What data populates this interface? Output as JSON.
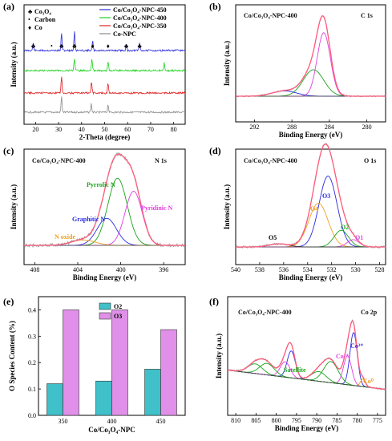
{
  "panels": {
    "a": {
      "label": "(a)",
      "xlabel": "2-Theta (degree)",
      "ylabel": "Intensity (a.u.)",
      "marker_legend": [
        {
          "symbol": "♣",
          "label": "Co₃O₄"
        },
        {
          "symbol": "•",
          "label": "Carbon"
        },
        {
          "symbol": "♦",
          "label": "Co"
        }
      ]
    },
    "b": {
      "label": "(b)",
      "sample": "Co/Co₃O₄-NPC-400",
      "region": "C 1s",
      "xlabel": "Binding Energy (eV)",
      "ylabel": "Intensity (a.u.)"
    },
    "c": {
      "label": "(c)",
      "sample": "Co/Co₃O₄-NPC-400",
      "region": "N 1s",
      "xlabel": "Binding Energy (eV)",
      "ylabel": "Intensity (a.u.)",
      "annotations": [
        "Pyrrolic N",
        "Pyridinic N",
        "Graphitic N",
        "N oxide"
      ]
    },
    "d": {
      "label": "(d)",
      "sample": "Co/Co₃O₄-NPC-400",
      "region": "O 1s",
      "xlabel": "Binding Energy (eV)",
      "ylabel": "Intensity (a.u.)",
      "annotations": [
        "O3",
        "O4",
        "O2",
        "O1",
        "O5"
      ]
    },
    "e": {
      "label": "(e)",
      "xlabel": "Co/Co₃O₄-NPC",
      "ylabel": "O Species Content (%)"
    },
    "f": {
      "label": "(f)",
      "sample": "Co/Co₃O₄-NPC-400",
      "region": "Co 2p",
      "xlabel": "Binding Energy (eV)",
      "ylabel": "Intensity (a.u.)",
      "annotations": [
        "Co³⁺",
        "Co²⁺",
        "Co⁰",
        "Satellite"
      ]
    }
  },
  "colors": {
    "npc450": "#2b2bd9",
    "npc400": "#1fd11f",
    "npc350": "#e02020",
    "conpc": "#8a8a8a",
    "raw": "#999999",
    "fit": "#ff5a7a",
    "green": "#1aa31a",
    "blue": "#2a2ae0",
    "magenta": "#e040e0",
    "orange": "#f0a020",
    "black": "#333333",
    "o2bar": "#40c0c8",
    "o3bar": "#e090e8"
  },
  "chart_data": [
    {
      "panel": "a",
      "type": "line",
      "xlabel": "2-Theta (degree)",
      "ylabel": "Intensity (a.u.)",
      "xlim": [
        15,
        85
      ],
      "xticks": [
        10,
        20,
        30,
        40,
        50,
        60,
        70,
        80
      ],
      "series": [
        {
          "name": "Co/Co₃O₄-NPC-450",
          "peaks": [
            19.0,
            31.3,
            36.9,
            44.8,
            59.4,
            65.2
          ]
        },
        {
          "name": "Co/Co₃O₄-NPC-400",
          "peaks": [
            36.9,
            44.5,
            51.5,
            75.9
          ]
        },
        {
          "name": "Co/Co₃O₄-NPC-350",
          "peaks": [
            31.3,
            44.3,
            51.5
          ]
        },
        {
          "name": "Co-NPC",
          "peaks": [
            31.3,
            44.2,
            51.5
          ]
        }
      ]
    },
    {
      "panel": "b",
      "type": "line",
      "region": "C 1s",
      "xlabel": "Binding Energy (eV)",
      "ylabel": "Intensity (a.u.)",
      "xlim": [
        294,
        278
      ],
      "xticks": [
        292,
        288,
        284,
        280
      ],
      "components": [
        {
          "center": 284.6,
          "height": 0.72,
          "width": 0.7
        },
        {
          "center": 285.7,
          "height": 0.3,
          "width": 1.1
        },
        {
          "center": 288.8,
          "height": 0.06,
          "width": 1.3
        }
      ]
    },
    {
      "panel": "c",
      "type": "line",
      "region": "N 1s",
      "xlabel": "Binding Energy (eV)",
      "ylabel": "Intensity (a.u.)",
      "xlim": [
        409,
        394
      ],
      "xticks": [
        408,
        404,
        400,
        396
      ],
      "components": [
        {
          "name": "Pyrrolic N",
          "center": 400.3,
          "height": 0.62,
          "width": 0.9
        },
        {
          "name": "Pyridinic N",
          "center": 398.8,
          "height": 0.5,
          "width": 0.8
        },
        {
          "name": "Graphitic N",
          "center": 401.3,
          "height": 0.25,
          "width": 0.9
        },
        {
          "name": "N oxide",
          "center": 403.5,
          "height": 0.05,
          "width": 1.1
        }
      ]
    },
    {
      "panel": "d",
      "type": "line",
      "region": "O 1s",
      "xlabel": "Binding Energy (eV)",
      "ylabel": "Intensity (a.u.)",
      "xlim": [
        540,
        527.5
      ],
      "xticks": [
        540,
        538,
        536,
        534,
        532,
        530,
        528
      ],
      "components": [
        {
          "name": "O3",
          "center": 532.3,
          "height": 0.68,
          "width": 0.75
        },
        {
          "name": "O4",
          "center": 533.1,
          "height": 0.42,
          "width": 0.8
        },
        {
          "name": "O2",
          "center": 531.2,
          "height": 0.16,
          "width": 0.6
        },
        {
          "name": "O1",
          "center": 530.2,
          "height": 0.07,
          "width": 0.5
        },
        {
          "name": "O5",
          "center": 536.4,
          "height": 0.03,
          "width": 0.8
        }
      ]
    },
    {
      "panel": "e",
      "type": "bar",
      "xlabel": "Co/Co₃O₄-NPC",
      "ylabel": "O Species Content (%)",
      "categories": [
        "350",
        "400",
        "450"
      ],
      "ylim": [
        0,
        0.45
      ],
      "yticks": [
        0.0,
        0.1,
        0.2,
        0.3,
        0.4
      ],
      "legend": "top-left",
      "series": [
        {
          "name": "O2",
          "values": [
            0.12,
            0.13,
            0.175
          ]
        },
        {
          "name": "O3",
          "values": [
            0.4,
            0.4,
            0.325
          ]
        }
      ]
    },
    {
      "panel": "f",
      "type": "line",
      "region": "Co 2p",
      "xlabel": "Binding Energy (eV)",
      "ylabel": "Intensity (a.u.)",
      "xlim": [
        812,
        773
      ],
      "xticks": [
        810,
        805,
        800,
        795,
        790,
        785,
        780,
        775
      ],
      "components": [
        {
          "name": "Co³⁺",
          "center": 780.9,
          "height": 0.55,
          "width": 0.9
        },
        {
          "name": "Co²⁺",
          "center": 782.4,
          "height": 0.3,
          "width": 1.0
        },
        {
          "name": "Co⁰",
          "center": 778.6,
          "height": 0.08,
          "width": 0.6
        },
        {
          "name": "Satellite",
          "center": 786.5,
          "height": 0.22,
          "width": 1.8
        },
        {
          "center": 789.5,
          "height": 0.1,
          "width": 1.8
        },
        {
          "center": 796.3,
          "height": 0.28,
          "width": 1.0
        },
        {
          "center": 797.8,
          "height": 0.16,
          "width": 1.2
        },
        {
          "center": 802.3,
          "height": 0.12,
          "width": 1.8
        },
        {
          "center": 805.2,
          "height": 0.1,
          "width": 1.8
        }
      ]
    }
  ]
}
